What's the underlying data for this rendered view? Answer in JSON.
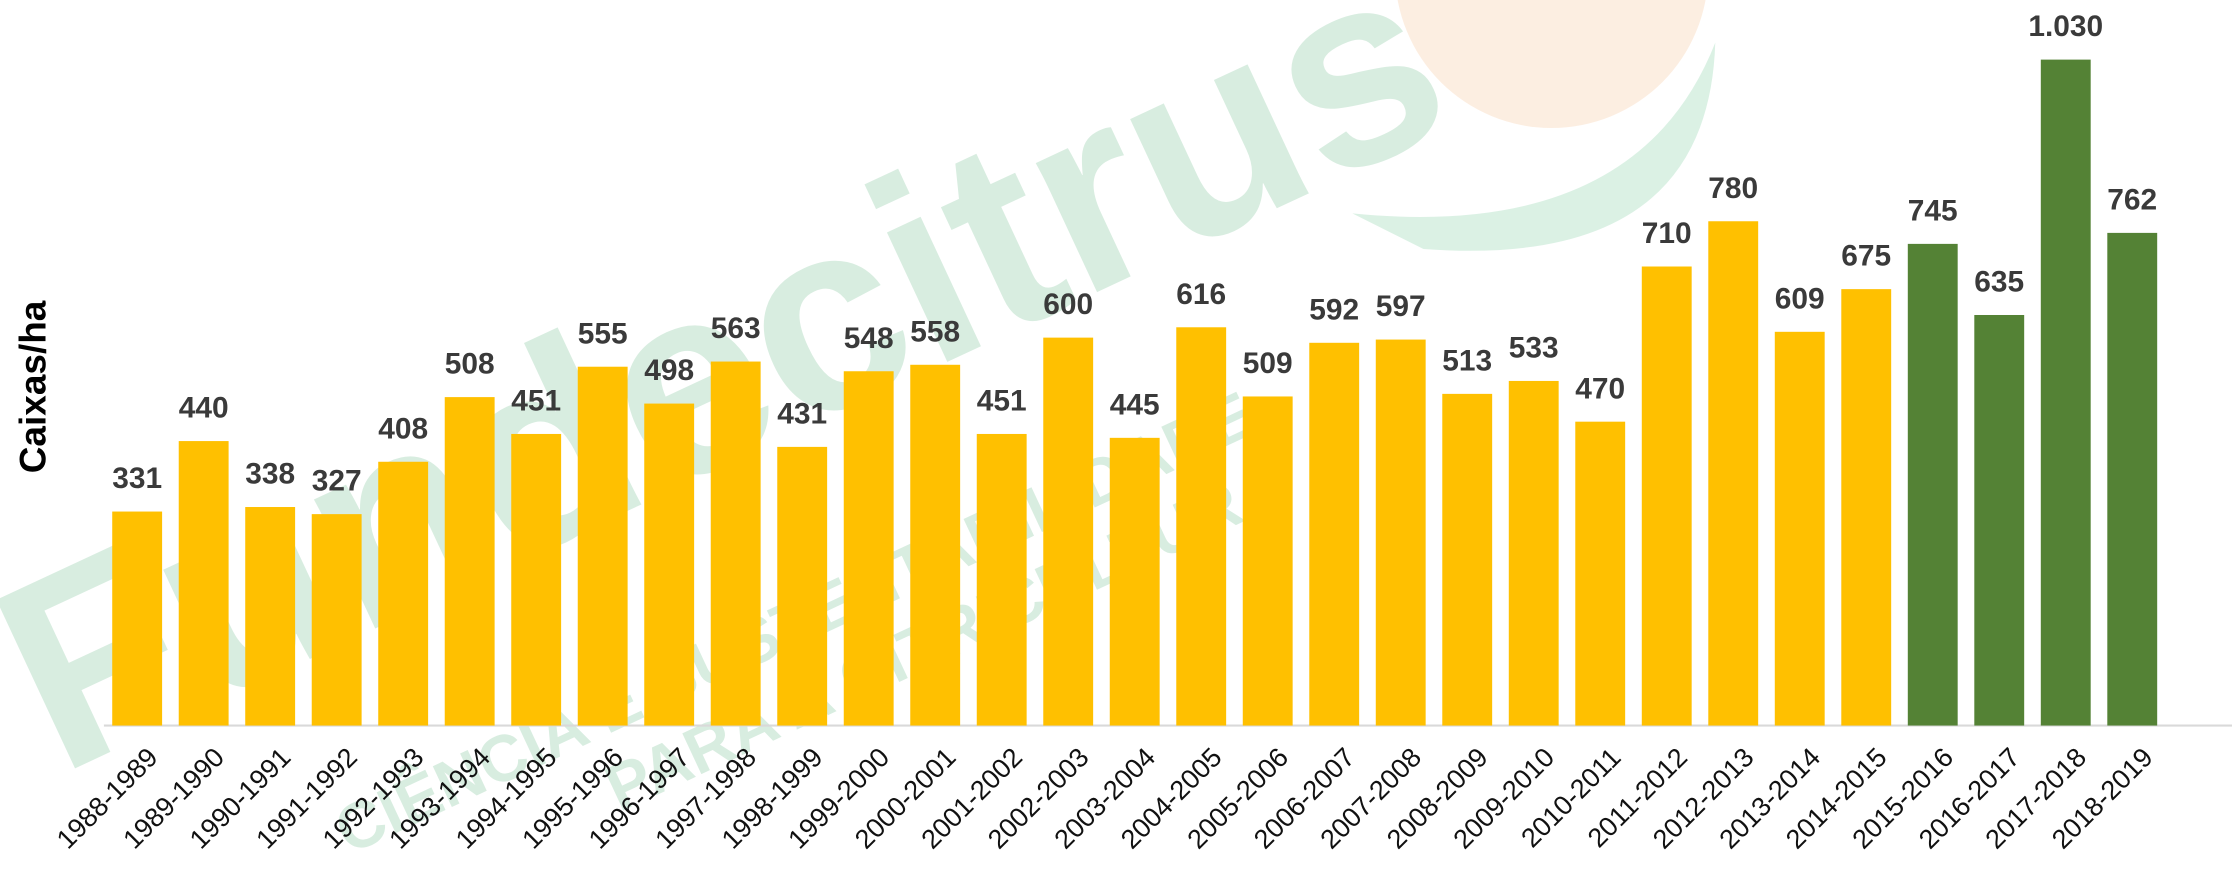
{
  "chart_data": {
    "type": "bar",
    "y_axis_label": "Caixas/ha",
    "categories": [
      "1988-1989",
      "1989-1990",
      "1990-1991",
      "1991-1992",
      "1992-1993",
      "1993-1994",
      "1994-1995",
      "1995-1996",
      "1996-1997",
      "1997-1998",
      "1998-1999",
      "1999-2000",
      "2000-2001",
      "2001-2002",
      "2002-2003",
      "2003-2004",
      "2004-2005",
      "2005-2006",
      "2006-2007",
      "2007-2008",
      "2008-2009",
      "2009-2010",
      "2010-2011",
      "2011-2012",
      "2012-2013",
      "2013-2014",
      "2014-2015",
      "2015-2016",
      "2016-2017",
      "2017-2018",
      "2018-2019"
    ],
    "values": [
      331,
      440,
      338,
      327,
      408,
      508,
      451,
      555,
      498,
      563,
      431,
      548,
      558,
      451,
      600,
      445,
      616,
      509,
      592,
      597,
      513,
      533,
      470,
      710,
      780,
      609,
      675,
      745,
      635,
      1030,
      762
    ],
    "value_labels": [
      "331",
      "440",
      "338",
      "327",
      "408",
      "508",
      "451",
      "555",
      "498",
      "563",
      "431",
      "548",
      "558",
      "451",
      "600",
      "445",
      "616",
      "509",
      "592",
      "597",
      "513",
      "533",
      "470",
      "710",
      "780",
      "609",
      "675",
      "745",
      "635",
      "1.030",
      "762"
    ],
    "colors": [
      "#FFC000",
      "#FFC000",
      "#FFC000",
      "#FFC000",
      "#FFC000",
      "#FFC000",
      "#FFC000",
      "#FFC000",
      "#FFC000",
      "#FFC000",
      "#FFC000",
      "#FFC000",
      "#FFC000",
      "#FFC000",
      "#FFC000",
      "#FFC000",
      "#FFC000",
      "#FFC000",
      "#FFC000",
      "#FFC000",
      "#FFC000",
      "#FFC000",
      "#FFC000",
      "#FFC000",
      "#FFC000",
      "#FFC000",
      "#FFC000",
      "#548235",
      "#548235",
      "#548235",
      "#548235"
    ],
    "ylim": [
      0,
      1120
    ],
    "watermark": {
      "text": "Fundecitrus",
      "tagline_1": "CIÊNCIA E SUSTENTABILIDADE",
      "tagline_2": "PARA A CITRICULTURA"
    }
  }
}
